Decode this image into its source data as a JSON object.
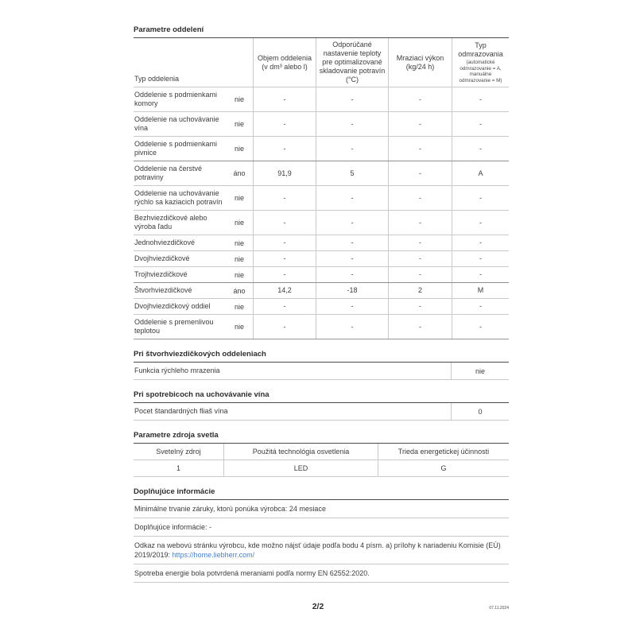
{
  "colors": {
    "text": "#3c3c3c",
    "border_light": "#c9c9c9",
    "border_dark": "#4a4a4a",
    "link": "#4a80c8"
  },
  "compartments": {
    "title": "Parametre oddelení",
    "header": {
      "type_label": "Typ oddelenia",
      "volume": "Objem oddelenia (v dm³ alebo l)",
      "temperature": "Odporúčané nastavenie teploty pre optimalizované skladovanie potravín (°C)",
      "capacity": "Mraziaci výkon (kg/24 h)",
      "defrost_title": "Typ odmrazovania",
      "defrost_sub": "(automatické odmrazovanie = A, manuálne odmrazovanie = M)"
    },
    "rows": [
      {
        "label": "Oddelenie s podmienkami komory",
        "present": "nie",
        "volume": "-",
        "temp": "-",
        "capacity": "-",
        "defrost": "-"
      },
      {
        "label": "Oddelenie na uchovávanie vína",
        "present": "nie",
        "volume": "-",
        "temp": "-",
        "capacity": "-",
        "defrost": "-"
      },
      {
        "label": "Oddelenie s podmienkami pivnice",
        "present": "nie",
        "volume": "-",
        "temp": "-",
        "capacity": "-",
        "defrost": "-"
      },
      {
        "label": "Oddelenie na čerstvé potraviny",
        "present": "áno",
        "volume": "91,9",
        "temp": "5",
        "capacity": "-",
        "defrost": "A"
      },
      {
        "label": "Oddelenie na uchovávanie rýchlo sa kaziacich potravín",
        "present": "nie",
        "volume": "-",
        "temp": "-",
        "capacity": "-",
        "defrost": "-"
      },
      {
        "label": "Bezhviezdičkové alebo výroba ľadu",
        "present": "nie",
        "volume": "-",
        "temp": "-",
        "capacity": "-",
        "defrost": "-"
      },
      {
        "label": "Jednohviezdičkové",
        "present": "nie",
        "volume": "-",
        "temp": "-",
        "capacity": "-",
        "defrost": "-"
      },
      {
        "label": "Dvojhviezdičkové",
        "present": "nie",
        "volume": "-",
        "temp": "-",
        "capacity": "-",
        "defrost": "-"
      },
      {
        "label": "Trojhviezdičkové",
        "present": "nie",
        "volume": "-",
        "temp": "-",
        "capacity": "-",
        "defrost": "-"
      },
      {
        "label": "Štvorhviezdičkové",
        "present": "áno",
        "volume": "14,2",
        "temp": "-18",
        "capacity": "2",
        "defrost": "M"
      },
      {
        "label": "Dvojhviezdičkový oddiel",
        "present": "nie",
        "volume": "-",
        "temp": "-",
        "capacity": "-",
        "defrost": "-"
      },
      {
        "label": "Oddelenie s premenlivou teplotou",
        "present": "nie",
        "volume": "-",
        "temp": "-",
        "capacity": "-",
        "defrost": "-"
      }
    ]
  },
  "four_star": {
    "title": "Pri štvorhviezdičkových oddeleniach",
    "row_label": "Funkcia rýchleho mrazenia",
    "row_value": "nie"
  },
  "wine": {
    "title": "Pri spotrebicoch na uchovávanie vína",
    "row_label": "Pocet štandardných fliaš vína",
    "row_value": "0"
  },
  "light": {
    "title": "Parametre zdroja svetla",
    "headers": [
      "Svetelný zdroj",
      "Použitá technológia osvetlenia",
      "Trieda energetickej účinnosti"
    ],
    "values": [
      "1",
      "LED",
      "G"
    ]
  },
  "additional": {
    "title": "Doplňujúce informácie",
    "warranty": "Minimálne trvanie záruky, ktorú ponúka výrobca: 24 mesiace",
    "extra": "Doplňujúce informácie: -",
    "link_prefix": "Odkaz na webovú stránku výrobcu, kde možno nájsť údaje podľa bodu 4 písm. a) prílohy k nariadeniu Komisie (EÚ) 2019/2019: ",
    "link_text": "https://home.liebherr.com/",
    "energy_note": "Spotreba energie bola potvrdená meraniami podľa normy EN 62552:2020."
  },
  "footer": {
    "page": "2/2",
    "date": "07.11.2024"
  }
}
